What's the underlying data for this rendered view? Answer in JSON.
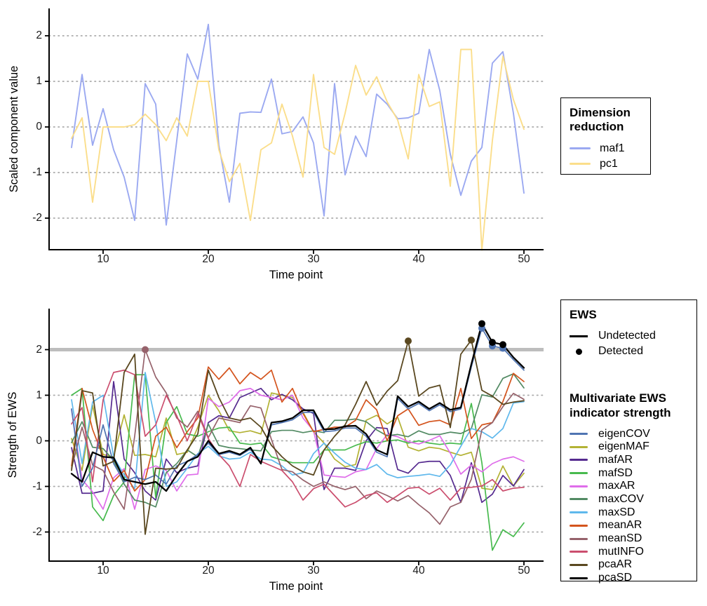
{
  "chart_data": [
    {
      "type": "line",
      "panel": "top",
      "xlabel": "Time point",
      "ylabel": "Scaled component value",
      "x_ticks": [
        10,
        20,
        30,
        40,
        50
      ],
      "y_ticks": [
        2,
        1,
        0,
        -1,
        -2
      ],
      "ylim": [
        -2.8,
        2.6
      ],
      "grid": "horizontal dotted",
      "legend_title": "Dimension reduction",
      "legend_position": "right",
      "x": [
        7,
        8,
        9,
        10,
        11,
        12,
        13,
        14,
        15,
        16,
        17,
        18,
        19,
        20,
        21,
        22,
        23,
        24,
        25,
        26,
        27,
        28,
        29,
        30,
        31,
        32,
        33,
        34,
        35,
        36,
        37,
        38,
        39,
        40,
        41,
        42,
        43,
        44,
        45,
        46,
        47,
        48,
        49,
        50
      ],
      "series": [
        {
          "name": "maf1",
          "color": "#9BA9F1",
          "width": 1.9,
          "z": 1,
          "values": [
            -0.45,
            1.15,
            -0.4,
            0.4,
            -0.5,
            -1.1,
            -2.05,
            0.95,
            0.5,
            -2.15,
            -0.3,
            1.6,
            1.05,
            2.25,
            -0.4,
            -1.65,
            0.3,
            0.33,
            0.32,
            1.05,
            -0.15,
            -0.1,
            0.22,
            -0.35,
            -1.95,
            0.95,
            -1.05,
            -0.2,
            -0.65,
            0.72,
            0.5,
            0.18,
            0.2,
            0.3,
            1.7,
            0.8,
            -0.6,
            -1.5,
            -0.75,
            -0.45,
            1.4,
            1.65,
            0.3,
            -1.45
          ]
        },
        {
          "name": "pc1",
          "color": "#FBDE8B",
          "width": 1.9,
          "z": 1,
          "values": [
            -0.25,
            0.2,
            -1.65,
            0.0,
            0.0,
            0.0,
            0.05,
            0.28,
            0.05,
            -0.3,
            0.2,
            -0.2,
            1.0,
            1.0,
            -0.5,
            -1.2,
            -0.8,
            -2.05,
            -0.5,
            -0.35,
            0.5,
            -0.2,
            -1.1,
            1.15,
            -0.45,
            -0.6,
            0.3,
            1.35,
            0.7,
            1.1,
            0.55,
            0.15,
            -0.7,
            1.15,
            0.45,
            0.55,
            -1.3,
            1.7,
            1.7,
            -2.7,
            -0.3,
            1.55,
            0.6,
            -0.05
          ]
        }
      ]
    },
    {
      "type": "line",
      "panel": "bottom",
      "xlabel": "Time point",
      "ylabel": "Strength of EWS",
      "x_ticks": [
        10,
        20,
        30,
        40,
        50
      ],
      "y_ticks": [
        2,
        1,
        0,
        -1,
        -2
      ],
      "ylim": [
        -2.9,
        2.9
      ],
      "grid": "horizontal dotted",
      "threshold": {
        "value": 2,
        "color": "#BDBDBD"
      },
      "ews_legend": {
        "title": "EWS",
        "undetected_label": "Undetected",
        "detected_label": "Detected"
      },
      "indicator_legend_title": "Multivariate EWS indicator strength",
      "x": [
        7,
        8,
        9,
        10,
        11,
        12,
        13,
        14,
        15,
        16,
        17,
        18,
        19,
        20,
        21,
        22,
        23,
        24,
        25,
        26,
        27,
        28,
        29,
        30,
        31,
        32,
        33,
        34,
        35,
        36,
        37,
        38,
        39,
        40,
        41,
        42,
        43,
        44,
        45,
        46,
        47,
        48,
        49,
        50
      ],
      "series": [
        {
          "name": "eigenCOV",
          "color": "#4F74B2",
          "width": 1.7,
          "z": 2,
          "values": [
            0.7,
            -1.0,
            -0.6,
            0.35,
            -0.5,
            -0.9,
            -0.8,
            -0.85,
            -0.75,
            -0.95,
            -0.55,
            -0.45,
            -0.3,
            -0.05,
            -0.3,
            -0.25,
            -0.32,
            -0.18,
            -0.5,
            0.35,
            0.4,
            0.46,
            0.62,
            0.63,
            0.2,
            0.22,
            0.28,
            0.28,
            0.1,
            -0.25,
            -0.35,
            0.93,
            0.7,
            0.82,
            0.66,
            0.79,
            0.64,
            0.7,
            1.62,
            2.47,
            2.08,
            2.03,
            1.78,
            1.55
          ]
        },
        {
          "name": "eigenMAF",
          "color": "#B3B235",
          "width": 1.7,
          "z": 1,
          "values": [
            0.05,
            -0.65,
            0.78,
            -0.3,
            -0.35,
            0.57,
            -0.32,
            -0.3,
            -0.35,
            0.5,
            -0.3,
            -0.25,
            0.3,
            1.0,
            0.66,
            0.22,
            0.18,
            0.22,
            0.15,
            1.05,
            1.0,
            0.95,
            0.63,
            0.2,
            -0.05,
            -0.4,
            -0.57,
            -0.52,
            0.45,
            0.56,
            0.37,
            0.52,
            -0.14,
            -0.22,
            -0.14,
            -0.17,
            -0.25,
            -0.32,
            -0.25,
            -1.04,
            -1.07,
            -0.55,
            -0.99,
            -0.71
          ]
        },
        {
          "name": "mafAR",
          "color": "#552A8F",
          "width": 1.7,
          "z": 1,
          "values": [
            -0.15,
            -1.15,
            -1.15,
            -1.1,
            1.3,
            -0.4,
            -0.7,
            -1.1,
            -1.3,
            -0.4,
            -0.7,
            -0.6,
            -0.55,
            0.4,
            0.55,
            0.5,
            0.95,
            1.05,
            1.15,
            0.9,
            1.02,
            0.9,
            0.7,
            0.6,
            -1.07,
            -0.6,
            -0.6,
            -0.65,
            0.0,
            0.29,
            0.27,
            -0.63,
            -0.71,
            -0.48,
            -0.45,
            -0.45,
            -0.76,
            -1.35,
            -0.48,
            -1.35,
            -1.17,
            -0.76,
            -0.99,
            -0.63
          ]
        },
        {
          "name": "mafSD",
          "color": "#47BA4E",
          "width": 1.7,
          "z": 1,
          "values": [
            1.0,
            1.15,
            -1.45,
            -1.75,
            -1.2,
            -0.9,
            1.45,
            1.45,
            -1.25,
            0.4,
            0.75,
            0.15,
            0.1,
            0.2,
            0.28,
            0.3,
            -0.05,
            -0.08,
            -0.05,
            -0.35,
            -0.42,
            -0.48,
            -0.48,
            -0.48,
            -0.2,
            -0.2,
            -0.2,
            -0.1,
            -0.02,
            -0.05,
            0.0,
            0.02,
            -0.05,
            0.0,
            -0.05,
            -0.08,
            -0.05,
            -0.07,
            0.82,
            -0.48,
            -2.4,
            -1.95,
            -2.1,
            -1.8
          ]
        },
        {
          "name": "maxAR",
          "color": "#DF6DEA",
          "width": 1.7,
          "z": 1,
          "values": [
            0.68,
            -0.85,
            -1.12,
            -1.5,
            -0.81,
            -0.61,
            -1.5,
            -0.63,
            -0.55,
            -0.65,
            -1.1,
            -0.75,
            -0.73,
            0.93,
            0.75,
            0.85,
            1.1,
            1.15,
            1.0,
            0.95,
            0.9,
            1.0,
            0.5,
            0.22,
            -0.75,
            -0.78,
            -0.8,
            -0.68,
            -0.63,
            -0.17,
            0.14,
            0.09,
            -0.02,
            -0.07,
            0.01,
            0.11,
            -0.27,
            -0.73,
            -0.53,
            -0.68,
            -0.5,
            -0.4,
            -0.35,
            -0.45
          ]
        },
        {
          "name": "maxCOV",
          "color": "#528A63",
          "width": 1.7,
          "z": 1,
          "values": [
            -0.04,
            0.42,
            -0.14,
            -0.17,
            -0.43,
            -0.95,
            -1.3,
            -1.35,
            -1.45,
            -0.7,
            -0.5,
            -0.2,
            -0.35,
            0.37,
            -0.1,
            -0.15,
            -0.17,
            -0.2,
            -0.22,
            0.2,
            0.23,
            0.23,
            0.18,
            0.22,
            0.18,
            0.45,
            0.45,
            0.48,
            0.42,
            0.24,
            0.11,
            0.14,
            0.09,
            0.22,
            0.14,
            0.14,
            0.19,
            0.16,
            0.27,
            1.01,
            0.96,
            1.37,
            1.47,
            1.16
          ]
        },
        {
          "name": "maxSD",
          "color": "#5FB8EC",
          "width": 1.7,
          "z": 1,
          "values": [
            0.9,
            -0.5,
            0.85,
            1.0,
            -0.35,
            -0.75,
            -1.05,
            1.5,
            0.4,
            -1.0,
            -0.9,
            -0.6,
            -0.28,
            -0.12,
            -0.33,
            -0.4,
            -0.38,
            -0.25,
            -0.4,
            -0.42,
            -0.55,
            -0.75,
            -0.7,
            -0.28,
            -0.05,
            -0.27,
            -0.47,
            -0.6,
            -0.63,
            -0.52,
            -0.73,
            -0.81,
            -0.78,
            -0.76,
            -0.73,
            -0.78,
            -0.53,
            -0.12,
            0.27,
            0.2,
            0.06,
            0.27,
            0.83,
            0.86
          ]
        },
        {
          "name": "meanAR",
          "color": "#D4541D",
          "width": 1.7,
          "z": 1,
          "values": [
            -0.55,
            1.15,
            0.25,
            -0.35,
            -0.89,
            -0.65,
            -1.1,
            -0.85,
            0.1,
            0.3,
            -0.15,
            0.2,
            0.5,
            1.62,
            1.35,
            1.6,
            1.25,
            1.5,
            1.35,
            1.55,
            0.85,
            1.15,
            0.6,
            0.2,
            0.25,
            0.3,
            0.3,
            0.45,
            0.9,
            0.68,
            0.0,
            0.55,
            0.7,
            0.34,
            0.42,
            0.45,
            0.35,
            1.15,
            0.05,
            0.35,
            0.4,
            0.86,
            1.48,
            1.3
          ]
        },
        {
          "name": "meanSD",
          "color": "#96626B",
          "width": 1.7,
          "z": 1,
          "values": [
            -0.6,
            0.3,
            -0.53,
            -0.65,
            -1.12,
            -1.5,
            0.1,
            2.0,
            1.4,
            1.05,
            0.5,
            0.3,
            0.65,
            0.07,
            0.5,
            0.45,
            0.4,
            0.77,
            0.72,
            0.03,
            -0.63,
            -0.68,
            -0.86,
            -1.0,
            -0.9,
            -1.0,
            -1.07,
            -1.0,
            -1.27,
            -1.1,
            -1.2,
            -1.32,
            -1.2,
            -1.4,
            -1.58,
            -1.83,
            -1.45,
            -1.35,
            -0.84,
            0.24,
            0.4,
            0.75,
            1.04,
            0.91
          ]
        },
        {
          "name": "mutINFO",
          "color": "#CB4E6E",
          "width": 1.7,
          "z": 1,
          "values": [
            0.37,
            0.73,
            -0.9,
            0.9,
            1.5,
            1.55,
            1.45,
            0.1,
            0.35,
            1.0,
            0.55,
            0.0,
            0.6,
            0.05,
            -0.3,
            -0.55,
            -1.0,
            -0.3,
            -0.45,
            -0.55,
            -0.65,
            -0.9,
            -1.3,
            -1.05,
            -0.95,
            -1.2,
            -1.45,
            -1.35,
            -1.2,
            -1.14,
            -1.35,
            -1.2,
            -1.04,
            -1.02,
            -1.17,
            -1.04,
            -1.3,
            -1.04,
            -1.02,
            -0.99,
            -0.85,
            -1.1,
            -1.04,
            -1.02
          ]
        },
        {
          "name": "pcaAR",
          "color": "#5A4820",
          "width": 1.8,
          "z": 2,
          "values": [
            -0.65,
            1.1,
            1.05,
            -0.55,
            -0.45,
            1.5,
            1.9,
            -2.05,
            -0.6,
            -0.62,
            -0.6,
            -0.2,
            0.15,
            1.55,
            0.95,
            0.5,
            0.45,
            0.5,
            0.3,
            -0.1,
            -0.35,
            -0.55,
            -0.68,
            -0.75,
            -0.2,
            0.1,
            0.35,
            0.8,
            1.3,
            0.78,
            1.09,
            1.32,
            2.19,
            0.98,
            1.16,
            1.22,
            0.29,
            1.9,
            2.21,
            1.11,
            0.98,
            0.8,
            0.85,
            0.88
          ]
        },
        {
          "name": "pcaSD",
          "color": "#000000",
          "width": 2.3,
          "z": 3,
          "values": [
            -0.72,
            -0.9,
            -0.25,
            -0.35,
            -0.37,
            -0.85,
            -0.9,
            -0.95,
            -0.9,
            -1.1,
            -0.75,
            -0.45,
            -0.35,
            0.0,
            -0.28,
            -0.22,
            -0.3,
            -0.15,
            -0.5,
            0.4,
            0.43,
            0.5,
            0.67,
            0.67,
            0.25,
            0.26,
            0.32,
            0.33,
            0.15,
            -0.2,
            -0.3,
            0.98,
            0.75,
            0.86,
            0.7,
            0.83,
            0.68,
            0.73,
            1.68,
            2.57,
            2.16,
            2.11,
            1.83,
            1.6
          ]
        }
      ],
      "detections": [
        {
          "series": "meanSD",
          "x": 14,
          "y": 2.0
        },
        {
          "series": "pcaAR",
          "x": 39,
          "y": 2.19
        },
        {
          "series": "pcaAR",
          "x": 45,
          "y": 2.21
        },
        {
          "series": "eigenCOV",
          "x": 46,
          "y": 2.47
        },
        {
          "series": "eigenCOV",
          "x": 47,
          "y": 2.08
        },
        {
          "series": "eigenCOV",
          "x": 48,
          "y": 2.03
        },
        {
          "series": "pcaSD",
          "x": 46,
          "y": 2.57
        },
        {
          "series": "pcaSD",
          "x": 47,
          "y": 2.16
        },
        {
          "series": "pcaSD",
          "x": 48,
          "y": 2.11
        }
      ]
    }
  ],
  "style": {
    "grid_color": "#ABABAB",
    "axis_color": "#000000",
    "tick_text_color": "#1a1a1a"
  }
}
